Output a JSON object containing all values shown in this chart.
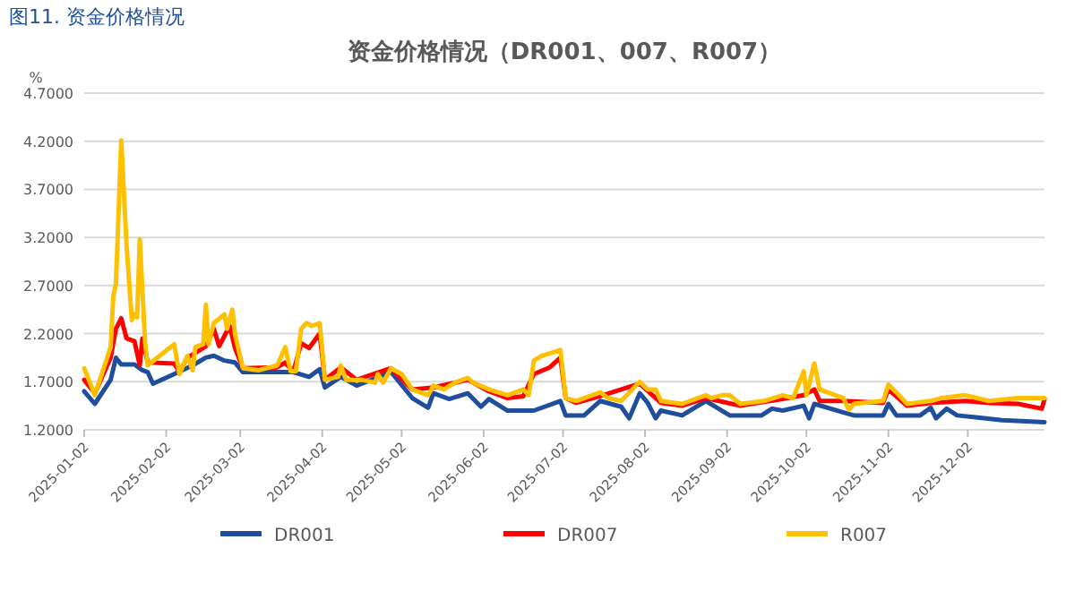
{
  "chart_data": {
    "type": "line",
    "title": "资金价格情况（DR001、007、R007）",
    "ylabel": "%",
    "annotations": [
      "图11. 资金价格情况"
    ],
    "xlim": [
      "2025-01-02",
      "2025-12-31"
    ],
    "xticks": [
      "2025-01-02",
      "2025-02-02",
      "2025-03-02",
      "2025-04-02",
      "2025-05-02",
      "2025-06-02",
      "2025-07-02",
      "2025-08-02",
      "2025-09-02",
      "2025-10-02",
      "2025-11-02",
      "2025-12-02"
    ],
    "ylim": [
      1.2,
      4.7
    ],
    "yticks": [
      {
        "value": 1.2,
        "label": "1.2000"
      },
      {
        "value": 1.7,
        "label": "1.7000"
      },
      {
        "value": 2.2,
        "label": "2.2000"
      },
      {
        "value": 2.7,
        "label": "2.7000"
      },
      {
        "value": 3.2,
        "label": "3.2000"
      },
      {
        "value": 3.7,
        "label": "3.7000"
      },
      {
        "value": 4.2,
        "label": "4.2000"
      },
      {
        "value": 4.7,
        "label": "4.7000"
      }
    ],
    "grid": "y",
    "legend": "bottom",
    "marker": "none",
    "line_style": "solid",
    "series": [
      {
        "name": "DR001",
        "color": "#1f4e9c",
        "x": [
          "2025-01-02",
          "2025-01-06",
          "2025-01-12",
          "2025-01-14",
          "2025-01-16",
          "2025-01-21",
          "2025-01-24",
          "2025-01-26",
          "2025-01-28",
          "2025-02-05",
          "2025-02-12",
          "2025-02-17",
          "2025-02-20",
          "2025-02-24",
          "2025-02-28",
          "2025-03-03",
          "2025-03-16",
          "2025-03-22",
          "2025-03-28",
          "2025-04-01",
          "2025-04-03",
          "2025-04-09",
          "2025-04-15",
          "2025-04-28",
          "2025-05-06",
          "2025-05-12",
          "2025-05-14",
          "2025-05-20",
          "2025-05-27",
          "2025-06-01",
          "2025-06-04",
          "2025-06-11",
          "2025-06-21",
          "2025-07-01",
          "2025-07-03",
          "2025-07-10",
          "2025-07-16",
          "2025-07-24",
          "2025-07-27",
          "2025-07-31",
          "2025-08-03",
          "2025-08-06",
          "2025-08-08",
          "2025-08-16",
          "2025-08-25",
          "2025-09-03",
          "2025-09-15",
          "2025-09-19",
          "2025-09-23",
          "2025-10-01",
          "2025-10-03",
          "2025-10-05",
          "2025-10-16",
          "2025-10-20",
          "2025-10-31",
          "2025-11-02",
          "2025-11-05",
          "2025-11-14",
          "2025-11-18",
          "2025-11-20",
          "2025-11-24",
          "2025-11-28",
          "2025-12-05",
          "2025-12-15",
          "2025-12-31"
        ],
        "values": [
          1.6,
          1.47,
          1.72,
          1.95,
          1.88,
          1.88,
          1.82,
          1.8,
          1.68,
          1.78,
          1.87,
          1.95,
          1.97,
          1.92,
          1.9,
          1.8,
          1.8,
          1.8,
          1.75,
          1.83,
          1.64,
          1.75,
          1.66,
          1.8,
          1.53,
          1.43,
          1.58,
          1.52,
          1.58,
          1.44,
          1.52,
          1.4,
          1.4,
          1.5,
          1.35,
          1.35,
          1.5,
          1.44,
          1.32,
          1.58,
          1.48,
          1.32,
          1.4,
          1.35,
          1.5,
          1.35,
          1.35,
          1.42,
          1.4,
          1.45,
          1.32,
          1.47,
          1.38,
          1.35,
          1.35,
          1.47,
          1.35,
          1.35,
          1.43,
          1.32,
          1.42,
          1.35,
          1.33,
          1.3,
          1.28
        ]
      },
      {
        "name": "DR007",
        "color": "#ff0000",
        "x": [
          "2025-01-02",
          "2025-01-06",
          "2025-01-12",
          "2025-01-14",
          "2025-01-16",
          "2025-01-18",
          "2025-01-21",
          "2025-01-23",
          "2025-01-24",
          "2025-01-26",
          "2025-02-05",
          "2025-02-07",
          "2025-02-10",
          "2025-02-13",
          "2025-02-17",
          "2025-02-20",
          "2025-02-22",
          "2025-02-26",
          "2025-02-28",
          "2025-03-03",
          "2025-03-16",
          "2025-03-19",
          "2025-03-22",
          "2025-03-25",
          "2025-03-28",
          "2025-04-01",
          "2025-04-03",
          "2025-04-09",
          "2025-04-15",
          "2025-04-28",
          "2025-05-06",
          "2025-05-14",
          "2025-05-27",
          "2025-06-04",
          "2025-06-11",
          "2025-06-17",
          "2025-06-21",
          "2025-06-27",
          "2025-07-01",
          "2025-07-03",
          "2025-07-07",
          "2025-07-16",
          "2025-07-31",
          "2025-08-08",
          "2025-08-16",
          "2025-08-25",
          "2025-09-07",
          "2025-09-23",
          "2025-10-01",
          "2025-10-05",
          "2025-10-07",
          "2025-10-16",
          "2025-10-31",
          "2025-11-02",
          "2025-11-09",
          "2025-11-18",
          "2025-12-01",
          "2025-12-10",
          "2025-12-21",
          "2025-12-30",
          "2025-12-31"
        ],
        "values": [
          1.72,
          1.58,
          1.95,
          2.25,
          2.36,
          2.15,
          2.12,
          1.87,
          2.15,
          1.9,
          1.89,
          1.8,
          1.95,
          2.0,
          2.07,
          2.25,
          2.07,
          2.28,
          2.05,
          1.84,
          1.85,
          1.9,
          1.8,
          2.1,
          2.05,
          2.2,
          1.72,
          1.85,
          1.72,
          1.84,
          1.62,
          1.64,
          1.72,
          1.6,
          1.53,
          1.55,
          1.78,
          1.85,
          1.95,
          1.53,
          1.48,
          1.55,
          1.68,
          1.48,
          1.45,
          1.53,
          1.45,
          1.52,
          1.56,
          1.62,
          1.5,
          1.5,
          1.48,
          1.62,
          1.45,
          1.48,
          1.5,
          1.48,
          1.47,
          1.42,
          1.52
        ]
      },
      {
        "name": "R007",
        "color": "#ffc000",
        "x": [
          "2025-01-02",
          "2025-01-06",
          "2025-01-12",
          "2025-01-13",
          "2025-01-14",
          "2025-01-16",
          "2025-01-18",
          "2025-01-20",
          "2025-01-21",
          "2025-01-22",
          "2025-01-23",
          "2025-01-25",
          "2025-01-26",
          "2025-02-05",
          "2025-02-07",
          "2025-02-10",
          "2025-02-12",
          "2025-02-13",
          "2025-02-16",
          "2025-02-17",
          "2025-02-18",
          "2025-02-20",
          "2025-02-24",
          "2025-02-25",
          "2025-02-27",
          "2025-02-28",
          "2025-03-03",
          "2025-03-09",
          "2025-03-16",
          "2025-03-19",
          "2025-03-21",
          "2025-03-23",
          "2025-03-25",
          "2025-03-27",
          "2025-03-29",
          "2025-04-01",
          "2025-04-03",
          "2025-04-08",
          "2025-04-09",
          "2025-04-11",
          "2025-04-17",
          "2025-04-22",
          "2025-04-23",
          "2025-04-25",
          "2025-04-28",
          "2025-05-02",
          "2025-05-06",
          "2025-05-12",
          "2025-05-14",
          "2025-05-18",
          "2025-05-22",
          "2025-05-27",
          "2025-05-29",
          "2025-06-04",
          "2025-06-11",
          "2025-06-17",
          "2025-06-19",
          "2025-06-21",
          "2025-06-24",
          "2025-07-01",
          "2025-07-03",
          "2025-07-07",
          "2025-07-16",
          "2025-07-19",
          "2025-07-24",
          "2025-07-31",
          "2025-08-03",
          "2025-08-06",
          "2025-08-08",
          "2025-08-16",
          "2025-08-25",
          "2025-08-27",
          "2025-08-31",
          "2025-09-03",
          "2025-09-07",
          "2025-09-16",
          "2025-09-23",
          "2025-09-27",
          "2025-10-01",
          "2025-10-02",
          "2025-10-05",
          "2025-10-07",
          "2025-10-16",
          "2025-10-18",
          "2025-10-20",
          "2025-10-31",
          "2025-11-02",
          "2025-11-06",
          "2025-11-09",
          "2025-11-18",
          "2025-11-22",
          "2025-12-01",
          "2025-12-10",
          "2025-12-21",
          "2025-12-31"
        ],
        "values": [
          1.84,
          1.56,
          2.06,
          2.59,
          2.72,
          4.21,
          3.12,
          2.34,
          2.4,
          2.37,
          3.18,
          2.12,
          1.87,
          2.09,
          1.78,
          1.97,
          1.82,
          2.06,
          2.09,
          2.5,
          2.09,
          2.31,
          2.4,
          2.25,
          2.45,
          2.19,
          1.84,
          1.82,
          1.87,
          2.06,
          1.81,
          1.81,
          2.25,
          2.31,
          2.28,
          2.31,
          1.72,
          1.75,
          1.87,
          1.72,
          1.72,
          1.69,
          1.78,
          1.69,
          1.84,
          1.78,
          1.62,
          1.56,
          1.66,
          1.62,
          1.69,
          1.74,
          1.69,
          1.62,
          1.56,
          1.62,
          1.56,
          1.92,
          1.97,
          2.03,
          1.53,
          1.5,
          1.59,
          1.53,
          1.5,
          1.7,
          1.62,
          1.62,
          1.5,
          1.47,
          1.56,
          1.53,
          1.56,
          1.56,
          1.47,
          1.5,
          1.56,
          1.53,
          1.81,
          1.56,
          1.89,
          1.62,
          1.53,
          1.41,
          1.47,
          1.5,
          1.67,
          1.56,
          1.47,
          1.5,
          1.53,
          1.56,
          1.5,
          1.53,
          1.53
        ]
      }
    ]
  }
}
